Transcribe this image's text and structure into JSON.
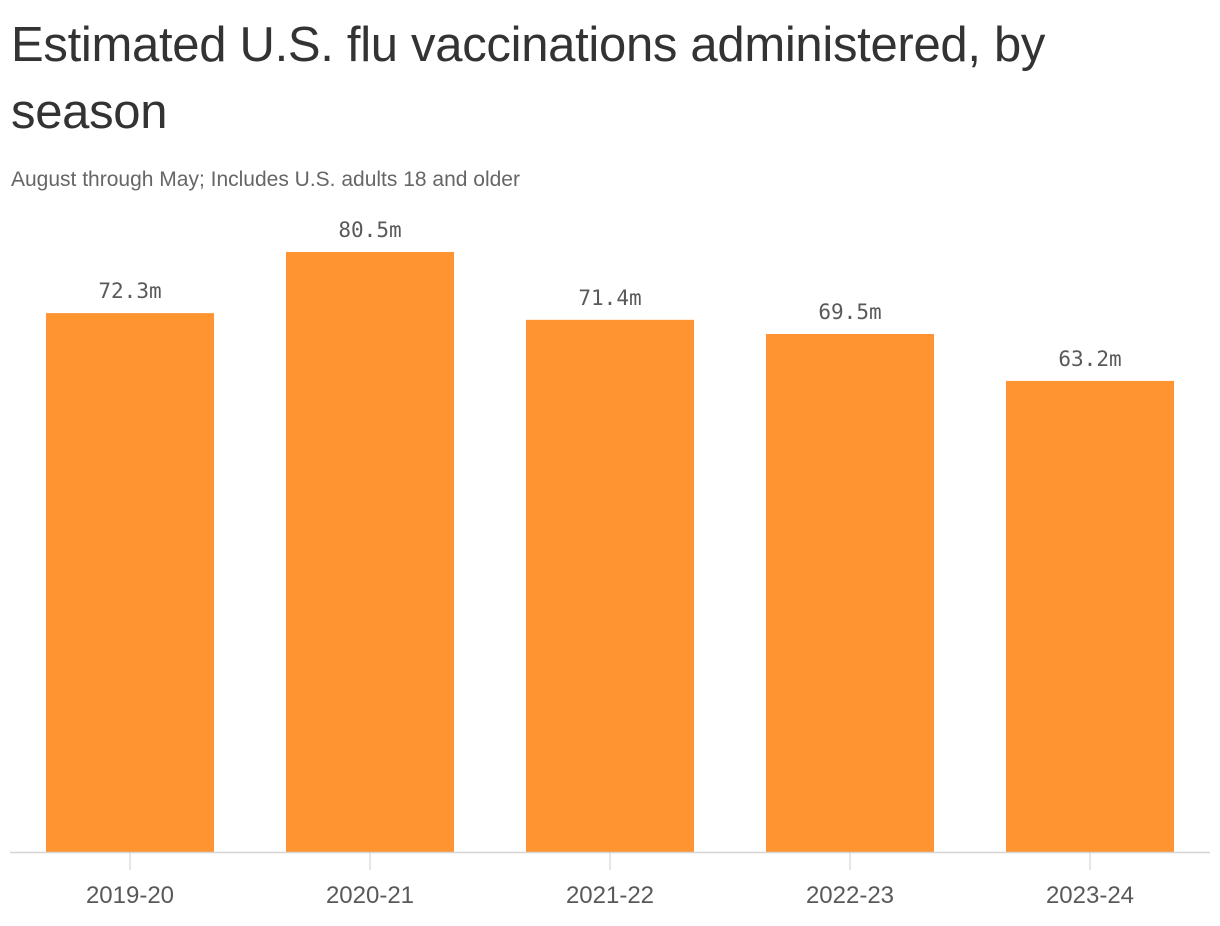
{
  "title": "Estimated U.S. flu vaccinations administered, by season",
  "subtitle": "August through May; Includes U.S. adults 18 and older",
  "colors": {
    "bar": "#ff9430",
    "axis": "#d6d6d6",
    "tick": "#cccccc",
    "label": "#595959",
    "title": "#333333",
    "subtitle": "#666666"
  },
  "chart_data": {
    "type": "bar",
    "categories": [
      "2019-20",
      "2020-21",
      "2021-22",
      "2022-23",
      "2023-24"
    ],
    "values": [
      72.3,
      80.5,
      71.4,
      69.5,
      63.2
    ],
    "value_labels": [
      "72.3m",
      "80.5m",
      "71.4m",
      "69.5m",
      "63.2m"
    ],
    "unit": "m",
    "title": "Estimated U.S. flu vaccinations administered, by season",
    "subtitle": "August through May; Includes U.S. adults 18 and older",
    "xlabel": "",
    "ylabel": "",
    "ylim": [
      0,
      80.5
    ],
    "grid": false,
    "legend": "none"
  }
}
